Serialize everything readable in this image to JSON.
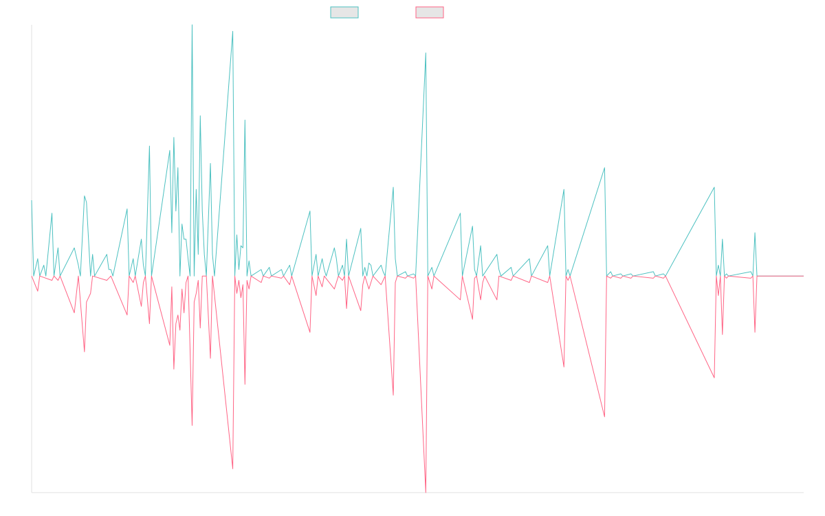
{
  "chart_data": {
    "type": "line",
    "title": "",
    "xlabel": "",
    "ylabel": "",
    "grid": false,
    "legend": {
      "placement": "top-center",
      "entries": [
        {
          "name": "",
          "color": "#4bc0c0",
          "fill": "#e6e6e6"
        },
        {
          "name": "",
          "color": "#ff6384",
          "fill": "#e6e6e6"
        }
      ]
    },
    "ylim": [
      -1,
      1.16
    ],
    "x_count": 380,
    "series": [
      {
        "name": "",
        "color": "#4bc0c0",
        "points": [
          [
            0,
            0.35
          ],
          [
            1,
            0
          ],
          [
            3,
            0.08
          ],
          [
            4,
            0
          ],
          [
            6,
            0.05
          ],
          [
            7,
            0
          ],
          [
            10,
            0.29
          ],
          [
            11,
            0
          ],
          [
            13,
            0.13
          ],
          [
            14,
            0
          ],
          [
            21,
            0.13
          ],
          [
            23,
            0.05
          ],
          [
            24,
            0
          ],
          [
            26,
            0.37
          ],
          [
            27,
            0.34
          ],
          [
            29,
            0
          ],
          [
            30,
            0.1
          ],
          [
            31,
            0
          ],
          [
            37,
            0.1
          ],
          [
            38,
            0.03
          ],
          [
            39,
            0.03
          ],
          [
            40,
            0
          ],
          [
            47,
            0.31
          ],
          [
            48,
            0
          ],
          [
            50,
            0.08
          ],
          [
            51,
            0
          ],
          [
            54,
            0.17
          ],
          [
            55,
            0.05
          ],
          [
            56,
            0
          ],
          [
            58,
            0.6
          ],
          [
            59,
            0
          ],
          [
            68,
            0.58
          ],
          [
            69,
            0.2
          ],
          [
            70,
            0.64
          ],
          [
            71,
            0.3
          ],
          [
            72,
            0.5
          ],
          [
            73,
            0
          ],
          [
            74,
            0.24
          ],
          [
            75,
            0.17
          ],
          [
            76,
            0.17
          ],
          [
            77,
            0.08
          ],
          [
            78,
            0
          ],
          [
            79,
            1.16
          ],
          [
            80,
            0
          ],
          [
            81,
            0.4
          ],
          [
            82,
            0.1
          ],
          [
            83,
            0.74
          ],
          [
            84,
            0.3
          ],
          [
            85,
            0.1
          ],
          [
            86,
            0
          ],
          [
            88,
            0.52
          ],
          [
            89,
            0.1
          ],
          [
            90,
            0
          ],
          [
            99,
            1.13
          ],
          [
            100,
            0
          ],
          [
            101,
            0.19
          ],
          [
            102,
            0.03
          ],
          [
            103,
            0.14
          ],
          [
            104,
            0.13
          ],
          [
            105,
            0.72
          ],
          [
            106,
            0
          ],
          [
            107,
            0.07
          ],
          [
            108,
            0
          ],
          [
            113,
            0.03
          ],
          [
            114,
            0
          ],
          [
            117,
            0.04
          ],
          [
            118,
            0
          ],
          [
            123,
            0.03
          ],
          [
            124,
            0
          ],
          [
            127,
            0.05
          ],
          [
            128,
            0
          ],
          [
            137,
            0.3
          ],
          [
            138,
            0
          ],
          [
            140,
            0.1
          ],
          [
            141,
            0
          ],
          [
            143,
            0.08
          ],
          [
            144,
            0.03
          ],
          [
            145,
            0
          ],
          [
            149,
            0.13
          ],
          [
            150,
            0.08
          ],
          [
            151,
            0
          ],
          [
            153,
            0.05
          ],
          [
            154,
            0
          ],
          [
            155,
            0.17
          ],
          [
            156,
            0
          ],
          [
            162,
            0.22
          ],
          [
            163,
            0
          ],
          [
            164,
            0.04
          ],
          [
            165,
            0
          ],
          [
            166,
            0.06
          ],
          [
            167,
            0.05
          ],
          [
            168,
            0
          ],
          [
            172,
            0.05
          ],
          [
            173,
            0.02
          ],
          [
            174,
            0
          ],
          [
            178,
            0.41
          ],
          [
            179,
            0.08
          ],
          [
            180,
            0
          ],
          [
            184,
            0.02
          ],
          [
            185,
            0
          ],
          [
            188,
            0.01
          ],
          [
            189,
            0
          ],
          [
            194,
            1.03
          ],
          [
            195,
            0
          ],
          [
            197,
            0.04
          ],
          [
            198,
            0
          ],
          [
            211,
            0.29
          ],
          [
            212,
            0
          ],
          [
            217,
            0.23
          ],
          [
            218,
            0.03
          ],
          [
            219,
            0
          ],
          [
            221,
            0.14
          ],
          [
            222,
            0
          ],
          [
            229,
            0.1
          ],
          [
            230,
            0.03
          ],
          [
            231,
            0
          ],
          [
            236,
            0.04
          ],
          [
            237,
            0
          ],
          [
            245,
            0.08
          ],
          [
            246,
            0
          ],
          [
            254,
            0.14
          ],
          [
            255,
            0
          ],
          [
            262,
            0.4
          ],
          [
            263,
            0
          ],
          [
            264,
            0.03
          ],
          [
            265,
            0
          ],
          [
            282,
            0.5
          ],
          [
            283,
            0
          ],
          [
            285,
            0.02
          ],
          [
            286,
            0
          ],
          [
            290,
            0.01
          ],
          [
            291,
            0
          ],
          [
            295,
            0.01
          ],
          [
            296,
            0
          ],
          [
            306,
            0.02
          ],
          [
            307,
            0
          ],
          [
            311,
            0.01
          ],
          [
            312,
            0
          ],
          [
            336,
            0.41
          ],
          [
            337,
            0
          ],
          [
            338,
            0.05
          ],
          [
            339,
            0
          ],
          [
            340,
            0.17
          ],
          [
            341,
            0
          ],
          [
            342,
            0.01
          ],
          [
            343,
            0
          ],
          [
            354,
            0.02
          ],
          [
            355,
            0
          ],
          [
            356,
            0.2
          ],
          [
            357,
            0
          ],
          [
            380,
            0
          ]
        ]
      },
      {
        "name": "",
        "color": "#ff6384",
        "points": [
          [
            0,
            0
          ],
          [
            3,
            -0.07
          ],
          [
            4,
            0
          ],
          [
            10,
            -0.02
          ],
          [
            11,
            0
          ],
          [
            13,
            -0.02
          ],
          [
            14,
            0
          ],
          [
            21,
            -0.17
          ],
          [
            23,
            0
          ],
          [
            26,
            -0.35
          ],
          [
            27,
            -0.12
          ],
          [
            29,
            -0.08
          ],
          [
            30,
            0
          ],
          [
            37,
            -0.02
          ],
          [
            38,
            -0.01
          ],
          [
            39,
            0
          ],
          [
            47,
            -0.18
          ],
          [
            48,
            0
          ],
          [
            50,
            -0.03
          ],
          [
            51,
            0
          ],
          [
            54,
            -0.14
          ],
          [
            55,
            -0.03
          ],
          [
            56,
            0
          ],
          [
            58,
            -0.22
          ],
          [
            59,
            0
          ],
          [
            68,
            -0.32
          ],
          [
            69,
            -0.05
          ],
          [
            70,
            -0.43
          ],
          [
            71,
            -0.22
          ],
          [
            72,
            -0.18
          ],
          [
            73,
            -0.25
          ],
          [
            74,
            -0.06
          ],
          [
            75,
            -0.17
          ],
          [
            76,
            -0.03
          ],
          [
            77,
            0
          ],
          [
            79,
            -0.69
          ],
          [
            80,
            -0.12
          ],
          [
            81,
            -0.08
          ],
          [
            82,
            -0.02
          ],
          [
            83,
            -0.24
          ],
          [
            84,
            0
          ],
          [
            86,
            0
          ],
          [
            88,
            -0.38
          ],
          [
            89,
            0
          ],
          [
            99,
            -0.89
          ],
          [
            100,
            0
          ],
          [
            101,
            -0.08
          ],
          [
            102,
            -0.02
          ],
          [
            103,
            -0.1
          ],
          [
            104,
            -0.04
          ],
          [
            105,
            -0.5
          ],
          [
            106,
            -0.02
          ],
          [
            107,
            -0.06
          ],
          [
            108,
            0
          ],
          [
            113,
            -0.03
          ],
          [
            114,
            0
          ],
          [
            117,
            -0.01
          ],
          [
            118,
            0
          ],
          [
            123,
            -0.01
          ],
          [
            124,
            0
          ],
          [
            127,
            -0.04
          ],
          [
            128,
            0
          ],
          [
            137,
            -0.26
          ],
          [
            138,
            0
          ],
          [
            140,
            -0.09
          ],
          [
            141,
            0
          ],
          [
            143,
            -0.05
          ],
          [
            144,
            0
          ],
          [
            149,
            -0.06
          ],
          [
            150,
            -0.03
          ],
          [
            151,
            0
          ],
          [
            153,
            -0.02
          ],
          [
            154,
            0
          ],
          [
            155,
            -0.15
          ],
          [
            156,
            0
          ],
          [
            162,
            -0.16
          ],
          [
            163,
            -0.04
          ],
          [
            164,
            0
          ],
          [
            166,
            -0.06
          ],
          [
            167,
            -0.03
          ],
          [
            168,
            0
          ],
          [
            172,
            -0.04
          ],
          [
            173,
            -0.02
          ],
          [
            174,
            0
          ],
          [
            178,
            -0.55
          ],
          [
            179,
            -0.03
          ],
          [
            180,
            0
          ],
          [
            184,
            -0.01
          ],
          [
            185,
            0
          ],
          [
            188,
            -0.01
          ],
          [
            189,
            0
          ],
          [
            194,
            -1.0
          ],
          [
            195,
            0
          ],
          [
            197,
            -0.06
          ],
          [
            198,
            0
          ],
          [
            211,
            -0.11
          ],
          [
            212,
            0
          ],
          [
            217,
            -0.2
          ],
          [
            218,
            -0.01
          ],
          [
            219,
            0
          ],
          [
            221,
            -0.11
          ],
          [
            222,
            -0.03
          ],
          [
            223,
            0
          ],
          [
            229,
            -0.11
          ],
          [
            230,
            0
          ],
          [
            236,
            -0.02
          ],
          [
            237,
            0
          ],
          [
            245,
            -0.03
          ],
          [
            246,
            0
          ],
          [
            254,
            -0.03
          ],
          [
            255,
            0
          ],
          [
            262,
            -0.42
          ],
          [
            263,
            0
          ],
          [
            264,
            -0.02
          ],
          [
            265,
            0
          ],
          [
            282,
            -0.65
          ],
          [
            283,
            0
          ],
          [
            285,
            -0.01
          ],
          [
            286,
            0
          ],
          [
            290,
            -0.01
          ],
          [
            291,
            0
          ],
          [
            295,
            -0.01
          ],
          [
            296,
            0
          ],
          [
            306,
            -0.01
          ],
          [
            307,
            0
          ],
          [
            311,
            -0.01
          ],
          [
            312,
            0
          ],
          [
            336,
            -0.47
          ],
          [
            337,
            0
          ],
          [
            338,
            -0.09
          ],
          [
            339,
            0
          ],
          [
            340,
            -0.27
          ],
          [
            341,
            0
          ],
          [
            342,
            -0.01
          ],
          [
            343,
            0
          ],
          [
            354,
            -0.01
          ],
          [
            355,
            0
          ],
          [
            356,
            -0.26
          ],
          [
            357,
            0
          ],
          [
            380,
            0
          ]
        ]
      }
    ]
  }
}
